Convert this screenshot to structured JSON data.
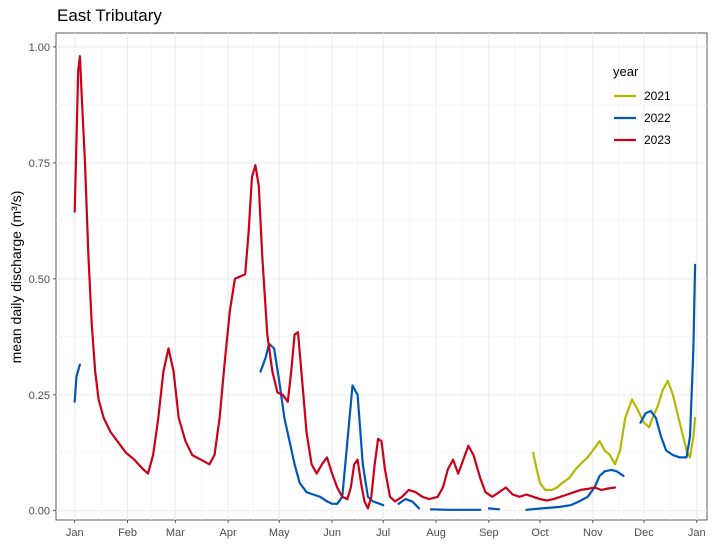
{
  "chart_data": {
    "type": "line",
    "title": "East Tributary",
    "xlabel": "",
    "ylabel": "mean daily discharge (m³/s)",
    "x_tick_labels": [
      "Jan",
      "Feb",
      "Mar",
      "Apr",
      "May",
      "Jun",
      "Jul",
      "Aug",
      "Sep",
      "Oct",
      "Nov",
      "Dec",
      "Jan"
    ],
    "y_tick_labels": [
      "0.00",
      "0.25",
      "0.50",
      "0.75",
      "1.00"
    ],
    "y_ticks": [
      0,
      0.25,
      0.5,
      0.75,
      1.0
    ],
    "ylim": [
      -0.02,
      1.03
    ],
    "xlim": [
      "Dec 21",
      "Jan 07"
    ],
    "grid": true,
    "legend_title": "year",
    "legend_position": "top-right",
    "series": [
      {
        "name": "2021",
        "color": "#b5b800",
        "segments": [
          [
            [
              "Sep 27",
              0.125
            ],
            [
              "Sep 29",
              0.09
            ],
            [
              "Oct 1",
              0.06
            ],
            [
              "Oct 4",
              0.045
            ],
            [
              "Oct 8",
              0.045
            ],
            [
              "Oct 11",
              0.05
            ],
            [
              "Oct 14",
              0.06
            ],
            [
              "Oct 18",
              0.07
            ],
            [
              "Oct 22",
              0.09
            ],
            [
              "Oct 26",
              0.105
            ],
            [
              "Oct 29",
              0.115
            ],
            [
              "Nov 2",
              0.135
            ],
            [
              "Nov 5",
              0.15
            ],
            [
              "Nov 8",
              0.13
            ],
            [
              "Nov 11",
              0.12
            ],
            [
              "Nov 14",
              0.1
            ],
            [
              "Nov 17",
              0.13
            ],
            [
              "Nov 20",
              0.2
            ],
            [
              "Nov 24",
              0.24
            ],
            [
              "Nov 27",
              0.22
            ],
            [
              "Dec 1",
              0.19
            ],
            [
              "Dec 4",
              0.18
            ],
            [
              "Dec 6",
              0.2
            ],
            [
              "Dec 9",
              0.225
            ],
            [
              "Dec 12",
              0.26
            ],
            [
              "Dec 15",
              0.28
            ],
            [
              "Dec 18",
              0.25
            ],
            [
              "Dec 22",
              0.19
            ],
            [
              "Dec 26",
              0.13
            ],
            [
              "Dec 28",
              0.115
            ],
            [
              "Dec 30",
              0.16
            ],
            [
              "Dec 31",
              0.2
            ]
          ]
        ]
      },
      {
        "name": "2022",
        "color": "#0057b8",
        "segments": [
          [
            [
              "Jan 1",
              0.235
            ],
            [
              "Jan 2",
              0.29
            ],
            [
              "Jan 4",
              0.315
            ]
          ],
          [
            [
              "Apr 20",
              0.3
            ],
            [
              "Apr 23",
              0.33
            ],
            [
              "Apr 25",
              0.36
            ],
            [
              "Apr 28",
              0.35
            ],
            [
              "May 1",
              0.28
            ],
            [
              "May 4",
              0.2
            ],
            [
              "May 7",
              0.15
            ],
            [
              "May 10",
              0.1
            ],
            [
              "May 13",
              0.06
            ],
            [
              "May 17",
              0.04
            ],
            [
              "May 21",
              0.035
            ],
            [
              "May 25",
              0.03
            ],
            [
              "May 29",
              0.02
            ],
            [
              "Jun 1",
              0.015
            ],
            [
              "Jun 4",
              0.015
            ],
            [
              "Jun 7",
              0.03
            ],
            [
              "Jun 10",
              0.15
            ],
            [
              "Jun 13",
              0.27
            ],
            [
              "Jun 16",
              0.25
            ],
            [
              "Jun 19",
              0.1
            ],
            [
              "Jun 22",
              0.03
            ],
            [
              "Jun 25",
              0.02
            ],
            [
              "Jun 29",
              0.015
            ],
            [
              "Jul 1",
              0.012
            ]
          ],
          [
            [
              "Jul 10",
              0.015
            ],
            [
              "Jul 14",
              0.025
            ],
            [
              "Jul 18",
              0.02
            ],
            [
              "Jul 22",
              0.005
            ]
          ],
          [
            [
              "Jul 29",
              0.003
            ],
            [
              "Aug 8",
              0.002
            ],
            [
              "Aug 17",
              0.002
            ],
            [
              "Aug 27",
              0.002
            ]
          ],
          [
            [
              "Sep 1",
              0.005
            ],
            [
              "Sep 7",
              0.003
            ]
          ],
          [
            [
              "Sep 23",
              0.002
            ],
            [
              "Oct 2",
              0.005
            ],
            [
              "Oct 12",
              0.008
            ],
            [
              "Oct 19",
              0.012
            ],
            [
              "Oct 24",
              0.02
            ],
            [
              "Oct 29",
              0.03
            ],
            [
              "Nov 2",
              0.05
            ],
            [
              "Nov 5",
              0.075
            ],
            [
              "Nov 8",
              0.085
            ],
            [
              "Nov 12",
              0.088
            ],
            [
              "Nov 15",
              0.085
            ],
            [
              "Nov 19",
              0.075
            ]
          ],
          [
            [
              "Nov 29",
              0.19
            ],
            [
              "Dec 2",
              0.21
            ],
            [
              "Dec 5",
              0.215
            ],
            [
              "Dec 8",
              0.2
            ],
            [
              "Dec 11",
              0.16
            ],
            [
              "Dec 14",
              0.13
            ],
            [
              "Dec 18",
              0.12
            ],
            [
              "Dec 22",
              0.115
            ],
            [
              "Dec 26",
              0.115
            ],
            [
              "Dec 28",
              0.16
            ],
            [
              "Dec 30",
              0.35
            ],
            [
              "Dec 31",
              0.53
            ]
          ]
        ]
      },
      {
        "name": "2023",
        "color": "#cc0019",
        "segments": [
          [
            [
              "Jan 1",
              0.645
            ],
            [
              "Jan 2",
              0.8
            ],
            [
              "Jan 3",
              0.95
            ],
            [
              "Jan 4",
              0.98
            ],
            [
              "Jan 5",
              0.9
            ],
            [
              "Jan 7",
              0.75
            ],
            [
              "Jan 9",
              0.55
            ],
            [
              "Jan 11",
              0.4
            ],
            [
              "Jan 13",
              0.3
            ],
            [
              "Jan 15",
              0.24
            ],
            [
              "Jan 18",
              0.2
            ],
            [
              "Jan 22",
              0.17
            ],
            [
              "Jan 26",
              0.15
            ],
            [
              "Jan 31",
              0.125
            ],
            [
              "Feb 5",
              0.11
            ],
            [
              "Feb 10",
              0.09
            ],
            [
              "Feb 13",
              0.08
            ],
            [
              "Feb 16",
              0.12
            ],
            [
              "Feb 19",
              0.2
            ],
            [
              "Feb 22",
              0.3
            ],
            [
              "Feb 25",
              0.35
            ],
            [
              "Feb 28",
              0.3
            ],
            [
              "Mar 3",
              0.2
            ],
            [
              "Mar 7",
              0.15
            ],
            [
              "Mar 11",
              0.12
            ],
            [
              "Mar 16",
              0.11
            ],
            [
              "Mar 21",
              0.1
            ],
            [
              "Mar 24",
              0.12
            ],
            [
              "Mar 27",
              0.2
            ],
            [
              "Mar 30",
              0.32
            ],
            [
              "Apr 2",
              0.43
            ],
            [
              "Apr 5",
              0.5
            ],
            [
              "Apr 8",
              0.505
            ],
            [
              "Apr 11",
              0.51
            ],
            [
              "Apr 13",
              0.6
            ],
            [
              "Apr 15",
              0.72
            ],
            [
              "Apr 17",
              0.745
            ],
            [
              "Apr 19",
              0.7
            ],
            [
              "Apr 21",
              0.55
            ],
            [
              "Apr 24",
              0.38
            ],
            [
              "Apr 27",
              0.3
            ],
            [
              "Apr 30",
              0.255
            ],
            [
              "May 3",
              0.25
            ],
            [
              "May 6",
              0.235
            ],
            [
              "May 8",
              0.3
            ],
            [
              "May 10",
              0.38
            ],
            [
              "May 12",
              0.385
            ],
            [
              "May 14",
              0.3
            ],
            [
              "May 17",
              0.17
            ],
            [
              "May 20",
              0.1
            ],
            [
              "May 23",
              0.08
            ],
            [
              "May 26",
              0.1
            ],
            [
              "May 29",
              0.115
            ],
            [
              "Jun 1",
              0.08
            ],
            [
              "Jun 4",
              0.05
            ],
            [
              "Jun 7",
              0.03
            ],
            [
              "Jun 10",
              0.025
            ],
            [
              "Jun 12",
              0.05
            ],
            [
              "Jun 14",
              0.1
            ],
            [
              "Jun 16",
              0.11
            ],
            [
              "Jun 18",
              0.06
            ],
            [
              "Jun 20",
              0.02
            ],
            [
              "Jun 22",
              0.005
            ],
            [
              "Jun 24",
              0.03
            ],
            [
              "Jun 26",
              0.1
            ],
            [
              "Jun 28",
              0.155
            ],
            [
              "Jun 30",
              0.15
            ],
            [
              "Jul 2",
              0.09
            ],
            [
              "Jul 5",
              0.03
            ],
            [
              "Jul 8",
              0.02
            ],
            [
              "Jul 12",
              0.03
            ],
            [
              "Jul 16",
              0.045
            ],
            [
              "Jul 20",
              0.04
            ],
            [
              "Jul 24",
              0.03
            ],
            [
              "Jul 28",
              0.025
            ],
            [
              "Aug 2",
              0.03
            ],
            [
              "Aug 5",
              0.05
            ],
            [
              "Aug 8",
              0.09
            ],
            [
              "Aug 11",
              0.11
            ],
            [
              "Aug 14",
              0.08
            ],
            [
              "Aug 17",
              0.11
            ],
            [
              "Aug 20",
              0.14
            ],
            [
              "Aug 23",
              0.12
            ],
            [
              "Aug 27",
              0.07
            ],
            [
              "Aug 30",
              0.04
            ],
            [
              "Sep 3",
              0.03
            ],
            [
              "Sep 7",
              0.04
            ],
            [
              "Sep 11",
              0.05
            ],
            [
              "Sep 15",
              0.035
            ],
            [
              "Sep 19",
              0.03
            ],
            [
              "Sep 23",
              0.035
            ],
            [
              "Sep 27",
              0.03
            ],
            [
              "Oct 1",
              0.025
            ],
            [
              "Oct 5",
              0.022
            ],
            [
              "Oct 9",
              0.025
            ],
            [
              "Oct 13",
              0.03
            ],
            [
              "Oct 17",
              0.035
            ],
            [
              "Oct 21",
              0.04
            ],
            [
              "Oct 25",
              0.045
            ],
            [
              "Oct 29",
              0.047
            ],
            [
              "Nov 2",
              0.05
            ],
            [
              "Nov 6",
              0.045
            ],
            [
              "Nov 10",
              0.048
            ],
            [
              "Nov 14",
              0.05
            ]
          ]
        ]
      }
    ]
  }
}
